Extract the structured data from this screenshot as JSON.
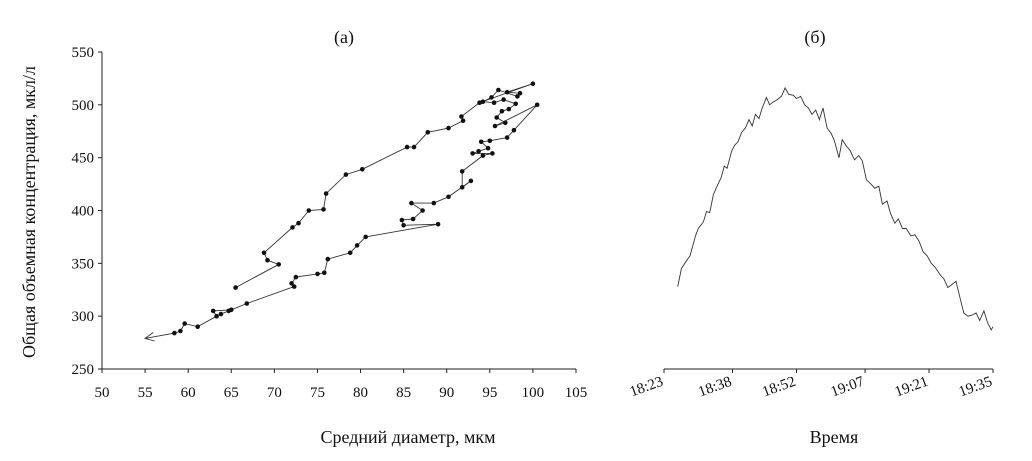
{
  "chart_data": [
    {
      "panel_label": "(a)",
      "type": "scatter",
      "xlabel": "Средний диаметр, мкм",
      "ylabel": "Общая объемная концентрация, мкл/л",
      "xlim": [
        50,
        105
      ],
      "ylim": [
        250,
        550
      ],
      "x_ticks": [
        50,
        55,
        60,
        65,
        70,
        75,
        80,
        85,
        90,
        95,
        100,
        105
      ],
      "y_ticks": [
        250,
        300,
        350,
        400,
        450,
        500,
        550
      ],
      "x_tick_labels": [
        "50",
        "55",
        "60",
        "65",
        "70",
        "75",
        "80",
        "85",
        "90",
        "95",
        "100",
        "105"
      ],
      "y_tick_labels": [
        "250",
        "300",
        "350",
        "400",
        "450",
        "500",
        "550"
      ],
      "connected": true,
      "arrow_at_end": true,
      "points": [
        [
          100.0,
          520
        ],
        [
          97.0,
          512
        ],
        [
          98.5,
          511
        ],
        [
          98.2,
          508
        ],
        [
          96.0,
          514
        ],
        [
          95.2,
          507
        ],
        [
          94.2,
          503
        ],
        [
          95.5,
          502
        ],
        [
          96.6,
          505
        ],
        [
          98.0,
          501
        ],
        [
          97.2,
          496
        ],
        [
          96.4,
          494
        ],
        [
          95.8,
          488
        ],
        [
          96.8,
          483
        ],
        [
          95.6,
          480
        ],
        [
          100.5,
          500
        ],
        [
          97.8,
          476
        ],
        [
          97.0,
          469
        ],
        [
          95.0,
          466
        ],
        [
          94.0,
          465
        ],
        [
          94.8,
          459
        ],
        [
          93.7,
          456
        ],
        [
          93.0,
          454
        ],
        [
          95.3,
          454
        ],
        [
          94.2,
          452
        ],
        [
          91.8,
          437
        ],
        [
          91.8,
          422
        ],
        [
          92.8,
          428
        ],
        [
          90.2,
          413
        ],
        [
          88.5,
          407
        ],
        [
          85.9,
          407
        ],
        [
          87.2,
          400
        ],
        [
          86.1,
          392
        ],
        [
          84.8,
          391
        ],
        [
          85.0,
          386
        ],
        [
          89.0,
          387
        ],
        [
          80.6,
          375
        ],
        [
          79.6,
          367
        ],
        [
          78.8,
          360
        ],
        [
          76.2,
          354
        ],
        [
          75.8,
          341
        ],
        [
          75.0,
          340
        ],
        [
          72.5,
          337
        ],
        [
          72.0,
          331
        ],
        [
          72.3,
          328
        ],
        [
          66.8,
          312
        ],
        [
          64.7,
          305
        ],
        [
          63.8,
          302
        ],
        [
          65.0,
          306
        ],
        [
          62.9,
          305
        ],
        [
          63.3,
          300
        ],
        [
          61.1,
          290
        ],
        [
          59.6,
          293
        ],
        [
          59.1,
          286
        ],
        [
          58.4,
          284
        ],
        [
          55.0,
          279
        ]
      ],
      "upper_branch_points": [
        [
          65.5,
          327
        ],
        [
          70.5,
          349
        ],
        [
          69.2,
          353
        ],
        [
          68.8,
          360
        ],
        [
          72.1,
          384
        ],
        [
          72.8,
          388
        ],
        [
          74.0,
          400
        ],
        [
          75.7,
          401
        ],
        [
          76.0,
          416
        ],
        [
          78.3,
          434
        ],
        [
          80.2,
          439
        ],
        [
          85.4,
          460
        ],
        [
          86.2,
          460
        ],
        [
          87.8,
          474
        ],
        [
          90.2,
          478
        ],
        [
          91.9,
          485
        ],
        [
          91.7,
          489
        ],
        [
          93.8,
          502
        ]
      ]
    },
    {
      "panel_label": "(б)",
      "type": "line",
      "xlabel": "Время",
      "x_tick_labels": [
        "18:23",
        "18:38",
        "18:52",
        "19:07",
        "19:21",
        "19:35"
      ],
      "x_ticks_minutes": [
        0,
        15,
        29,
        44,
        58,
        72
      ],
      "xlim_minutes": [
        0,
        72
      ],
      "ylim": [
        250,
        550
      ],
      "x_minutes": [
        3,
        3.8,
        5,
        5.7,
        6.9,
        7.5,
        8.6,
        9.3,
        10,
        10.8,
        11.5,
        12.5,
        13.2,
        13.8,
        14.8,
        15.5,
        16.2,
        17,
        17.8,
        18.6,
        19.3,
        20,
        20.8,
        21.5,
        22.4,
        23.1,
        24,
        24.8,
        25.7,
        26.5,
        27.3,
        28.3,
        29,
        29.9,
        30.8,
        31.6,
        32.4,
        33.2,
        34,
        34.8,
        35.7,
        36.6,
        37.3,
        38.3,
        39,
        39.9,
        40.7,
        41.7,
        42.6,
        43.4,
        44.3,
        45.3,
        46.1,
        47,
        47.8,
        48.8,
        49.6,
        50.5,
        51.3,
        52.2,
        53,
        54,
        54.9,
        55.8,
        56.7,
        57.6,
        58.5,
        59.4,
        60.3,
        61.3,
        62.1,
        63,
        63.9,
        64.8,
        65.6,
        66.5,
        67.4,
        68.3,
        69.1,
        70,
        70.8,
        71.6,
        72
      ],
      "values": [
        328,
        345,
        353,
        357,
        376,
        383,
        389,
        399,
        398,
        415,
        422,
        431,
        442,
        440,
        456,
        462,
        465,
        474,
        478,
        486,
        480,
        491,
        487,
        497,
        507,
        500,
        503,
        505,
        508,
        516,
        510,
        509,
        506,
        508,
        500,
        497,
        491,
        495,
        486,
        497,
        478,
        473,
        466,
        450,
        467,
        461,
        457,
        448,
        452,
        447,
        429,
        425,
        421,
        423,
        406,
        409,
        397,
        388,
        392,
        383,
        383,
        376,
        377,
        371,
        361,
        357,
        350,
        346,
        340,
        335,
        327,
        330,
        333,
        317,
        303,
        300,
        301,
        303,
        296,
        305,
        294,
        287,
        290
      ]
    }
  ]
}
